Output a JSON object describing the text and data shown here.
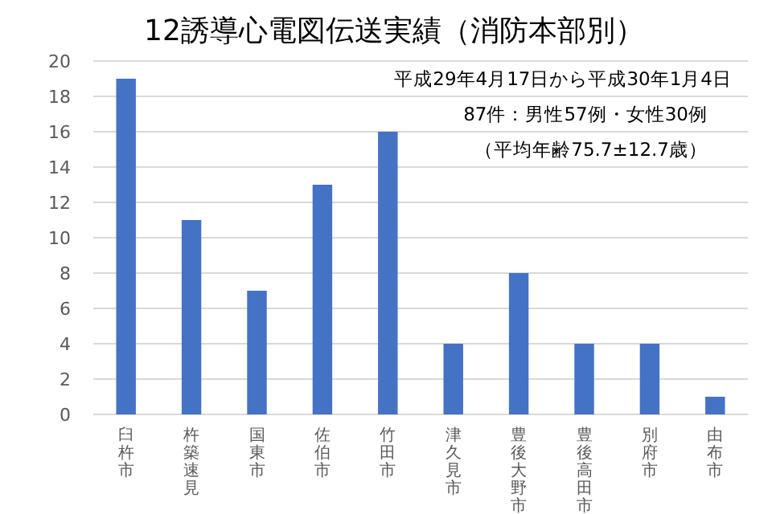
{
  "chart_data": {
    "type": "bar",
    "title": "12誘導心電図伝送実績（消防本部別）",
    "categories": [
      "臼杵市",
      "杵築速見",
      "国東市",
      "佐伯市",
      "竹田市",
      "津久見市",
      "豊後大野市",
      "豊後高田市",
      "別府市",
      "由布市"
    ],
    "values": [
      19,
      11,
      7,
      13,
      16,
      4,
      8,
      4,
      4,
      1
    ],
    "color": "#4472c4",
    "ylim": [
      0,
      20
    ],
    "yticks": [
      0,
      2,
      4,
      6,
      8,
      10,
      12,
      14,
      16,
      18,
      20
    ],
    "grid": "y",
    "annotations": [
      "平成29年4月17日から平成30年1月4日",
      "87件：男性57例・女性30例",
      "（平均年齢75.7±12.7歳）"
    ]
  }
}
